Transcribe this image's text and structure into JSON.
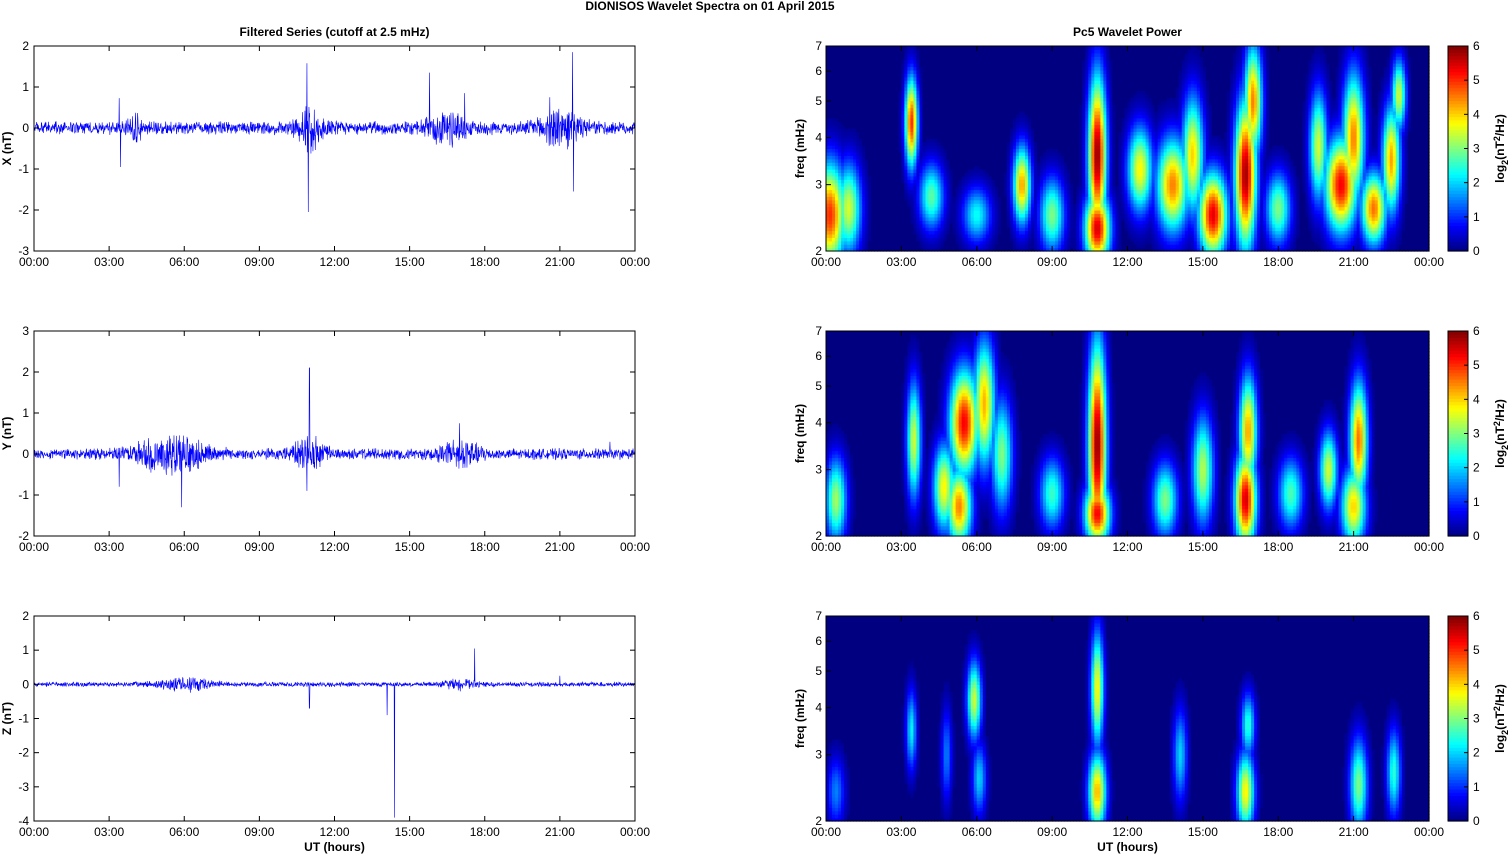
{
  "suptitle": "DIONISOS Wavelet Spectra on 01 April     2015",
  "time_ticks": [
    "00:00",
    "03:00",
    "06:00",
    "09:00",
    "12:00",
    "15:00",
    "18:00",
    "21:00",
    "00:00"
  ],
  "xlabel": "UT (hours)",
  "colors": {
    "trace": "#0000ff",
    "axis": "#000000"
  },
  "chart_data": [
    {
      "type": "line",
      "panel": "X",
      "title": "Filtered Series (cutoff at 2.5 mHz)",
      "ylabel": "X (nT)",
      "ylim": [
        -3,
        2
      ],
      "yticks": [
        "-3",
        "-2",
        "-1",
        "0",
        "1",
        "2"
      ],
      "xlim_hours": [
        0,
        24
      ],
      "noise_amplitude": 0.12,
      "bursts": [
        [
          4.0,
          0.3,
          0.25
        ],
        [
          11.0,
          0.5,
          0.35
        ],
        [
          16.5,
          0.8,
          0.25
        ],
        [
          21.0,
          0.8,
          0.3
        ]
      ],
      "spikes": [
        [
          3.4,
          0.73
        ],
        [
          3.45,
          -0.95
        ],
        [
          10.9,
          1.58
        ],
        [
          10.95,
          -2.05
        ],
        [
          15.8,
          1.35
        ],
        [
          17.2,
          0.85
        ],
        [
          21.5,
          1.85
        ],
        [
          21.55,
          -1.55
        ],
        [
          20.6,
          0.75
        ]
      ]
    },
    {
      "type": "line",
      "panel": "Y",
      "ylabel": "Y (nT)",
      "ylim": [
        -2,
        3
      ],
      "yticks": [
        "-2",
        "-1",
        "0",
        "1",
        "2",
        "3"
      ],
      "xlim_hours": [
        0,
        24
      ],
      "noise_amplitude": 0.1,
      "bursts": [
        [
          5.5,
          1.3,
          0.35
        ],
        [
          11.0,
          0.6,
          0.3
        ],
        [
          17.0,
          0.8,
          0.2
        ]
      ],
      "spikes": [
        [
          3.4,
          -0.8
        ],
        [
          5.9,
          -1.3
        ],
        [
          11.0,
          2.1
        ],
        [
          10.9,
          -0.9
        ],
        [
          17.0,
          0.75
        ],
        [
          23.0,
          0.3
        ]
      ]
    },
    {
      "type": "line",
      "panel": "Z",
      "ylabel": "Z (nT)",
      "ylim": [
        -4,
        2
      ],
      "yticks": [
        "-4",
        "-3",
        "-2",
        "-1",
        "0",
        "1",
        "2"
      ],
      "xlim_hours": [
        0,
        24
      ],
      "noise_amplitude": 0.05,
      "bursts": [
        [
          6.0,
          1.2,
          0.12
        ],
        [
          17.0,
          0.6,
          0.1
        ]
      ],
      "spikes": [
        [
          14.4,
          -3.9
        ],
        [
          14.1,
          -0.9
        ],
        [
          17.6,
          1.05
        ],
        [
          11.0,
          -0.7
        ],
        [
          21.0,
          0.25
        ]
      ]
    },
    {
      "type": "heatmap",
      "panel": "X",
      "title": "Pc5 Wavelet Power",
      "ylabel": "freq (mHz)",
      "ylim": [
        2,
        7
      ],
      "yscale": "log",
      "yticks": [
        "2",
        "3",
        "4",
        "5",
        "6",
        "7"
      ],
      "xlim_hours": [
        0,
        24
      ],
      "colorbar_ticks": [
        "0",
        "1",
        "2",
        "3",
        "4",
        "5",
        "6"
      ],
      "colorbar_label_base": "log",
      "colorbar_label_sub": "2",
      "colorbar_label_unit_a": "(nT",
      "colorbar_label_sup": "2",
      "colorbar_label_unit_b": "/Hz)",
      "clim": [
        0,
        6
      ],
      "blobs": [
        [
          0.15,
          2.5,
          0.45,
          0.55,
          5.0
        ],
        [
          0.9,
          2.6,
          0.35,
          0.5,
          3.5
        ],
        [
          3.4,
          4.4,
          0.18,
          0.85,
          5.0
        ],
        [
          4.2,
          2.8,
          0.35,
          0.4,
          2.8
        ],
        [
          6.0,
          2.5,
          0.4,
          0.3,
          2.3
        ],
        [
          7.8,
          3.0,
          0.25,
          0.5,
          4.3
        ],
        [
          9.0,
          2.5,
          0.35,
          0.4,
          3.0
        ],
        [
          10.8,
          3.6,
          0.25,
          1.2,
          5.9
        ],
        [
          10.8,
          2.3,
          0.35,
          0.35,
          5.5
        ],
        [
          12.5,
          3.3,
          0.35,
          0.6,
          3.8
        ],
        [
          13.8,
          3.0,
          0.45,
          0.6,
          4.5
        ],
        [
          14.6,
          3.6,
          0.3,
          0.9,
          4.0
        ],
        [
          15.4,
          2.5,
          0.4,
          0.45,
          5.4
        ],
        [
          16.7,
          3.2,
          0.3,
          1.0,
          5.8
        ],
        [
          17.0,
          5.0,
          0.25,
          1.2,
          4.5
        ],
        [
          18.0,
          2.6,
          0.35,
          0.4,
          3.0
        ],
        [
          19.6,
          3.8,
          0.25,
          0.9,
          3.5
        ],
        [
          20.5,
          3.0,
          0.45,
          0.6,
          5.3
        ],
        [
          21.0,
          4.0,
          0.3,
          1.1,
          4.5
        ],
        [
          21.8,
          2.6,
          0.35,
          0.4,
          4.6
        ],
        [
          22.5,
          3.5,
          0.25,
          0.8,
          4.3
        ],
        [
          22.8,
          5.2,
          0.2,
          0.8,
          3.5
        ]
      ]
    },
    {
      "type": "heatmap",
      "panel": "Y",
      "ylabel": "freq (mHz)",
      "ylim": [
        2,
        7
      ],
      "yscale": "log",
      "yticks": [
        "2",
        "3",
        "4",
        "5",
        "6",
        "7"
      ],
      "xlim_hours": [
        0,
        24
      ],
      "colorbar_ticks": [
        "0",
        "1",
        "2",
        "3",
        "4",
        "5",
        "6"
      ],
      "colorbar_label_base": "log",
      "colorbar_label_sub": "2",
      "colorbar_label_unit_a": "(nT",
      "colorbar_label_sup": "2",
      "colorbar_label_unit_b": "/Hz)",
      "clim": [
        0,
        6
      ],
      "blobs": [
        [
          0.4,
          2.5,
          0.3,
          0.45,
          3.2
        ],
        [
          3.5,
          3.6,
          0.2,
          0.9,
          3.5
        ],
        [
          4.7,
          2.7,
          0.3,
          0.5,
          3.8
        ],
        [
          5.3,
          2.4,
          0.35,
          0.4,
          4.5
        ],
        [
          5.5,
          4.0,
          0.4,
          0.9,
          5.3
        ],
        [
          6.3,
          4.5,
          0.3,
          1.2,
          4.2
        ],
        [
          7.0,
          3.3,
          0.3,
          0.8,
          3.0
        ],
        [
          9.0,
          2.6,
          0.35,
          0.4,
          2.6
        ],
        [
          10.8,
          3.5,
          0.25,
          1.5,
          5.9
        ],
        [
          10.8,
          2.3,
          0.35,
          0.3,
          5.3
        ],
        [
          13.5,
          2.5,
          0.35,
          0.4,
          3.0
        ],
        [
          15.0,
          3.0,
          0.3,
          0.7,
          3.3
        ],
        [
          16.7,
          2.5,
          0.3,
          0.5,
          5.5
        ],
        [
          16.8,
          3.8,
          0.25,
          0.9,
          4.3
        ],
        [
          18.5,
          2.6,
          0.35,
          0.4,
          2.7
        ],
        [
          20.0,
          3.0,
          0.25,
          0.5,
          3.5
        ],
        [
          21.2,
          3.6,
          0.25,
          0.9,
          4.6
        ],
        [
          21.0,
          2.4,
          0.35,
          0.4,
          4.0
        ]
      ]
    },
    {
      "type": "heatmap",
      "panel": "Z",
      "ylabel": "freq (mHz)",
      "ylim": [
        2,
        7
      ],
      "yscale": "log",
      "yticks": [
        "2",
        "3",
        "4",
        "5",
        "6",
        "7"
      ],
      "xlim_hours": [
        0,
        24
      ],
      "colorbar_ticks": [
        "0",
        "1",
        "2",
        "3",
        "4",
        "5",
        "6"
      ],
      "colorbar_label_base": "log",
      "colorbar_label_sub": "2",
      "colorbar_label_unit_a": "(nT",
      "colorbar_label_sup": "2",
      "colorbar_label_unit_b": "/Hz)",
      "clim": [
        0,
        6
      ],
      "blobs": [
        [
          0.4,
          2.4,
          0.25,
          0.35,
          1.5
        ],
        [
          3.4,
          3.5,
          0.15,
          0.6,
          2.2
        ],
        [
          4.8,
          3.0,
          0.15,
          0.6,
          1.5
        ],
        [
          5.9,
          4.2,
          0.2,
          0.7,
          3.5
        ],
        [
          6.1,
          2.6,
          0.2,
          0.4,
          2.0
        ],
        [
          10.8,
          2.4,
          0.25,
          0.4,
          4.2
        ],
        [
          10.8,
          4.5,
          0.18,
          1.1,
          3.8
        ],
        [
          14.1,
          3.0,
          0.2,
          0.6,
          2.0
        ],
        [
          16.7,
          2.4,
          0.25,
          0.4,
          3.8
        ],
        [
          16.8,
          3.6,
          0.2,
          0.5,
          2.5
        ],
        [
          21.2,
          2.5,
          0.25,
          0.5,
          3.0
        ],
        [
          22.6,
          2.7,
          0.2,
          0.5,
          2.5
        ]
      ]
    }
  ]
}
